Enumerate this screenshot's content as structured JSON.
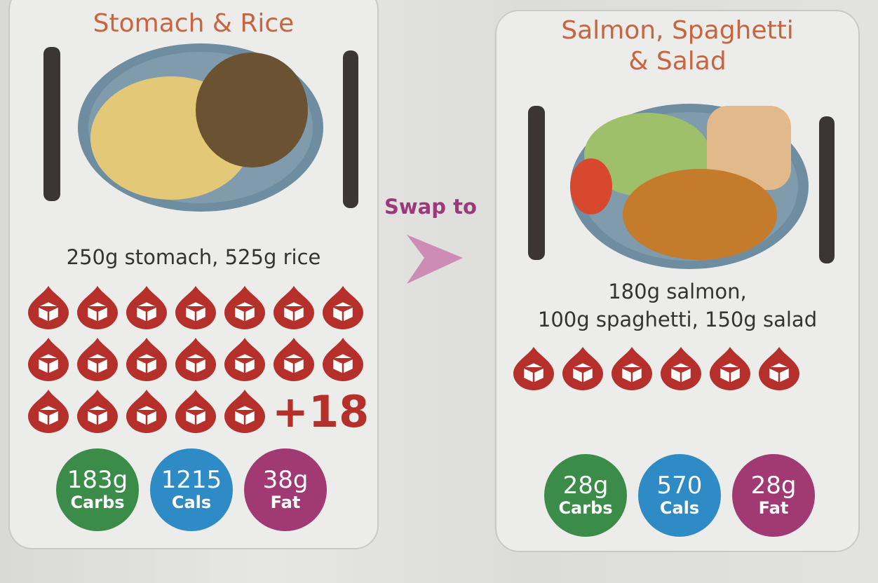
{
  "left": {
    "title": "Stomach & Rice",
    "portion": [
      "250g stomach, 525g rice"
    ],
    "sugar_icons": 19,
    "extra": "+18",
    "nutrients": [
      {
        "amount": "183g",
        "label": "Carbs",
        "color": "#3b8c48"
      },
      {
        "amount": "1215",
        "label": "Cals",
        "color": "#2e8bc6"
      },
      {
        "amount": "38g",
        "label": "Fat",
        "color": "#a13a73"
      }
    ]
  },
  "swap": "Swap to",
  "right": {
    "title": [
      "Salmon, Spaghetti",
      "& Salad"
    ],
    "portion": [
      "180g salmon,",
      "100g spaghetti, 150g salad"
    ],
    "sugar_icons": 6,
    "nutrients": [
      {
        "amount": "28g",
        "label": "Carbs",
        "color": "#3b8c48"
      },
      {
        "amount": "570",
        "label": "Cals",
        "color": "#2e8bc6"
      },
      {
        "amount": "28g",
        "label": "Fat",
        "color": "#a13a73"
      }
    ]
  }
}
